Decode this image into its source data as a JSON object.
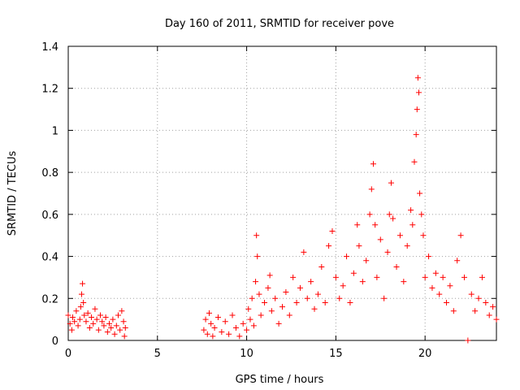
{
  "chart_data": {
    "type": "scatter",
    "title": "Day 160 of 2011, SRMTID for receiver pove",
    "xlabel": "GPS time / hours",
    "ylabel": "SRMTID / TECUs",
    "xlim": [
      0,
      24
    ],
    "ylim": [
      0,
      1.4
    ],
    "xticks": [
      0,
      5,
      10,
      15,
      20
    ],
    "xtick_labels": [
      "0",
      "5",
      "10",
      "15",
      "20"
    ],
    "yticks": [
      0,
      0.2,
      0.4,
      0.6,
      0.8,
      1,
      1.2,
      1.4
    ],
    "ytick_labels": [
      "0",
      "0.2",
      "0.4",
      "0.6",
      "0.8",
      "1",
      "1.2",
      "1.4"
    ],
    "grid": true,
    "marker": "plus",
    "series": [
      {
        "name": "SRMTID",
        "color": "#ff0000",
        "points": [
          [
            0.0,
            0.12
          ],
          [
            0.1,
            0.08
          ],
          [
            0.2,
            0.05
          ],
          [
            0.25,
            0.11
          ],
          [
            0.35,
            0.09
          ],
          [
            0.45,
            0.14
          ],
          [
            0.55,
            0.07
          ],
          [
            0.65,
            0.1
          ],
          [
            0.7,
            0.16
          ],
          [
            0.75,
            0.22
          ],
          [
            0.8,
            0.27
          ],
          [
            0.85,
            0.18
          ],
          [
            0.9,
            0.12
          ],
          [
            1.0,
            0.09
          ],
          [
            1.1,
            0.13
          ],
          [
            1.2,
            0.06
          ],
          [
            1.3,
            0.11
          ],
          [
            1.4,
            0.08
          ],
          [
            1.5,
            0.15
          ],
          [
            1.6,
            0.1
          ],
          [
            1.7,
            0.05
          ],
          [
            1.8,
            0.12
          ],
          [
            1.9,
            0.09
          ],
          [
            2.0,
            0.07
          ],
          [
            2.1,
            0.11
          ],
          [
            2.2,
            0.04
          ],
          [
            2.3,
            0.08
          ],
          [
            2.4,
            0.06
          ],
          [
            2.5,
            0.1
          ],
          [
            2.6,
            0.03
          ],
          [
            2.7,
            0.07
          ],
          [
            2.8,
            0.12
          ],
          [
            2.9,
            0.05
          ],
          [
            3.0,
            0.14
          ],
          [
            3.1,
            0.09
          ],
          [
            3.15,
            0.02
          ],
          [
            3.2,
            0.06
          ],
          [
            7.6,
            0.05
          ],
          [
            7.7,
            0.1
          ],
          [
            7.8,
            0.03
          ],
          [
            7.9,
            0.13
          ],
          [
            8.0,
            0.08
          ],
          [
            8.1,
            0.02
          ],
          [
            8.2,
            0.06
          ],
          [
            8.4,
            0.11
          ],
          [
            8.6,
            0.04
          ],
          [
            8.8,
            0.09
          ],
          [
            9.0,
            0.03
          ],
          [
            9.2,
            0.12
          ],
          [
            9.4,
            0.06
          ],
          [
            9.6,
            0.02
          ],
          [
            9.8,
            0.08
          ],
          [
            10.0,
            0.05
          ],
          [
            10.1,
            0.15
          ],
          [
            10.2,
            0.1
          ],
          [
            10.3,
            0.2
          ],
          [
            10.4,
            0.07
          ],
          [
            10.5,
            0.28
          ],
          [
            10.55,
            0.5
          ],
          [
            10.6,
            0.4
          ],
          [
            10.7,
            0.22
          ],
          [
            10.8,
            0.12
          ],
          [
            11.0,
            0.18
          ],
          [
            11.2,
            0.25
          ],
          [
            11.3,
            0.31
          ],
          [
            11.4,
            0.14
          ],
          [
            11.6,
            0.2
          ],
          [
            11.8,
            0.08
          ],
          [
            12.0,
            0.16
          ],
          [
            12.2,
            0.23
          ],
          [
            12.4,
            0.12
          ],
          [
            12.6,
            0.3
          ],
          [
            12.8,
            0.18
          ],
          [
            13.0,
            0.25
          ],
          [
            13.2,
            0.42
          ],
          [
            13.4,
            0.2
          ],
          [
            13.6,
            0.28
          ],
          [
            13.8,
            0.15
          ],
          [
            14.0,
            0.22
          ],
          [
            14.2,
            0.35
          ],
          [
            14.4,
            0.18
          ],
          [
            14.6,
            0.45
          ],
          [
            14.8,
            0.52
          ],
          [
            15.0,
            0.3
          ],
          [
            15.2,
            0.2
          ],
          [
            15.4,
            0.26
          ],
          [
            15.6,
            0.4
          ],
          [
            15.8,
            0.18
          ],
          [
            16.0,
            0.32
          ],
          [
            16.2,
            0.55
          ],
          [
            16.3,
            0.45
          ],
          [
            16.5,
            0.28
          ],
          [
            16.7,
            0.38
          ],
          [
            16.9,
            0.6
          ],
          [
            17.0,
            0.72
          ],
          [
            17.1,
            0.84
          ],
          [
            17.2,
            0.55
          ],
          [
            17.3,
            0.3
          ],
          [
            17.5,
            0.48
          ],
          [
            17.7,
            0.2
          ],
          [
            17.9,
            0.42
          ],
          [
            18.0,
            0.6
          ],
          [
            18.1,
            0.75
          ],
          [
            18.2,
            0.58
          ],
          [
            18.4,
            0.35
          ],
          [
            18.6,
            0.5
          ],
          [
            18.8,
            0.28
          ],
          [
            19.0,
            0.45
          ],
          [
            19.2,
            0.62
          ],
          [
            19.3,
            0.55
          ],
          [
            19.4,
            0.85
          ],
          [
            19.5,
            0.98
          ],
          [
            19.55,
            1.1
          ],
          [
            19.6,
            1.25
          ],
          [
            19.65,
            1.18
          ],
          [
            19.7,
            0.7
          ],
          [
            19.8,
            0.6
          ],
          [
            19.9,
            0.5
          ],
          [
            20.0,
            0.3
          ],
          [
            20.2,
            0.4
          ],
          [
            20.4,
            0.25
          ],
          [
            20.6,
            0.32
          ],
          [
            20.8,
            0.22
          ],
          [
            21.0,
            0.3
          ],
          [
            21.2,
            0.18
          ],
          [
            21.4,
            0.26
          ],
          [
            21.6,
            0.14
          ],
          [
            21.8,
            0.38
          ],
          [
            22.0,
            0.5
          ],
          [
            22.2,
            0.3
          ],
          [
            22.4,
            0.0
          ],
          [
            22.6,
            0.22
          ],
          [
            22.8,
            0.14
          ],
          [
            23.0,
            0.2
          ],
          [
            23.2,
            0.3
          ],
          [
            23.4,
            0.18
          ],
          [
            23.6,
            0.12
          ],
          [
            23.8,
            0.16
          ],
          [
            24.0,
            0.1
          ]
        ]
      }
    ]
  }
}
